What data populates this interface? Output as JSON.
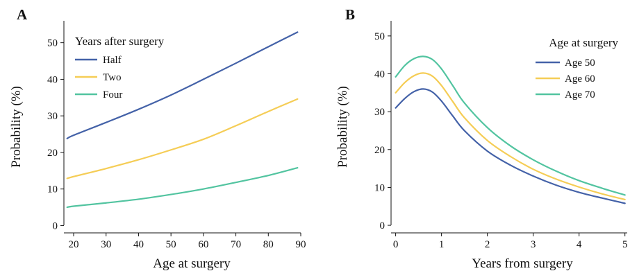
{
  "chart_data": [
    {
      "panel": "A",
      "type": "line",
      "xlabel": "Age at surgery",
      "ylabel": "Probability (%)",
      "xlim": [
        17,
        90
      ],
      "ylim": [
        -2,
        56
      ],
      "x_ticks": [
        20,
        30,
        40,
        50,
        60,
        70,
        80,
        90
      ],
      "y_ticks": [
        0,
        10,
        20,
        30,
        40,
        50
      ],
      "grid": false,
      "legend_title": "Years after surgery",
      "legend_position": "top-left",
      "series": [
        {
          "name": "Half",
          "color": "#4462a8",
          "x": [
            18,
            20,
            30,
            40,
            50,
            60,
            70,
            80,
            89
          ],
          "y": [
            23.8,
            24.7,
            28.2,
            31.8,
            35.7,
            40.0,
            44.4,
            48.9,
            52.9
          ]
        },
        {
          "name": "Two",
          "color": "#f5cd56",
          "x": [
            18,
            20,
            30,
            40,
            50,
            60,
            70,
            80,
            89
          ],
          "y": [
            12.9,
            13.4,
            15.6,
            18.0,
            20.7,
            23.6,
            27.3,
            31.2,
            34.6
          ]
        },
        {
          "name": "Four",
          "color": "#52c4a0",
          "x": [
            18,
            20,
            30,
            40,
            50,
            60,
            70,
            80,
            89
          ],
          "y": [
            5.0,
            5.3,
            6.2,
            7.2,
            8.5,
            10.0,
            11.8,
            13.7,
            15.8
          ]
        }
      ]
    },
    {
      "panel": "B",
      "type": "line",
      "xlabel": "Years from surgery",
      "ylabel": "Probability (%)",
      "xlim": [
        -0.1,
        5.05
      ],
      "ylim": [
        -2,
        54
      ],
      "x_ticks": [
        0,
        1,
        2,
        3,
        4,
        5
      ],
      "y_ticks": [
        0,
        10,
        20,
        30,
        40,
        50
      ],
      "grid": false,
      "legend_title": "Age at surgery",
      "legend_position": "top-right",
      "series": [
        {
          "name": "Age 50",
          "color": "#4462a8",
          "x": [
            0,
            0.2,
            0.4,
            0.6,
            0.8,
            1.0,
            1.25,
            1.5,
            2.0,
            2.5,
            3.0,
            3.5,
            4.0,
            4.5,
            5.0
          ],
          "y": [
            31.0,
            33.5,
            35.3,
            36.0,
            35.2,
            32.8,
            28.8,
            25.0,
            19.6,
            15.9,
            13.0,
            10.6,
            8.7,
            7.2,
            5.8
          ]
        },
        {
          "name": "Age 60",
          "color": "#f5cd56",
          "x": [
            0,
            0.2,
            0.4,
            0.6,
            0.8,
            1.0,
            1.25,
            1.5,
            2.0,
            2.5,
            3.0,
            3.5,
            4.0,
            4.5,
            5.0
          ],
          "y": [
            35.0,
            37.7,
            39.5,
            40.2,
            39.4,
            36.9,
            32.6,
            28.4,
            22.4,
            18.2,
            14.8,
            12.2,
            10.1,
            8.3,
            6.8
          ]
        },
        {
          "name": "Age 70",
          "color": "#52c4a0",
          "x": [
            0,
            0.2,
            0.4,
            0.6,
            0.8,
            1.0,
            1.25,
            1.5,
            2.0,
            2.5,
            3.0,
            3.5,
            4.0,
            4.5,
            5.0
          ],
          "y": [
            39.2,
            42.2,
            44.0,
            44.6,
            43.8,
            41.3,
            36.8,
            32.3,
            25.8,
            21.0,
            17.3,
            14.3,
            11.8,
            9.8,
            8.0
          ]
        }
      ]
    }
  ]
}
